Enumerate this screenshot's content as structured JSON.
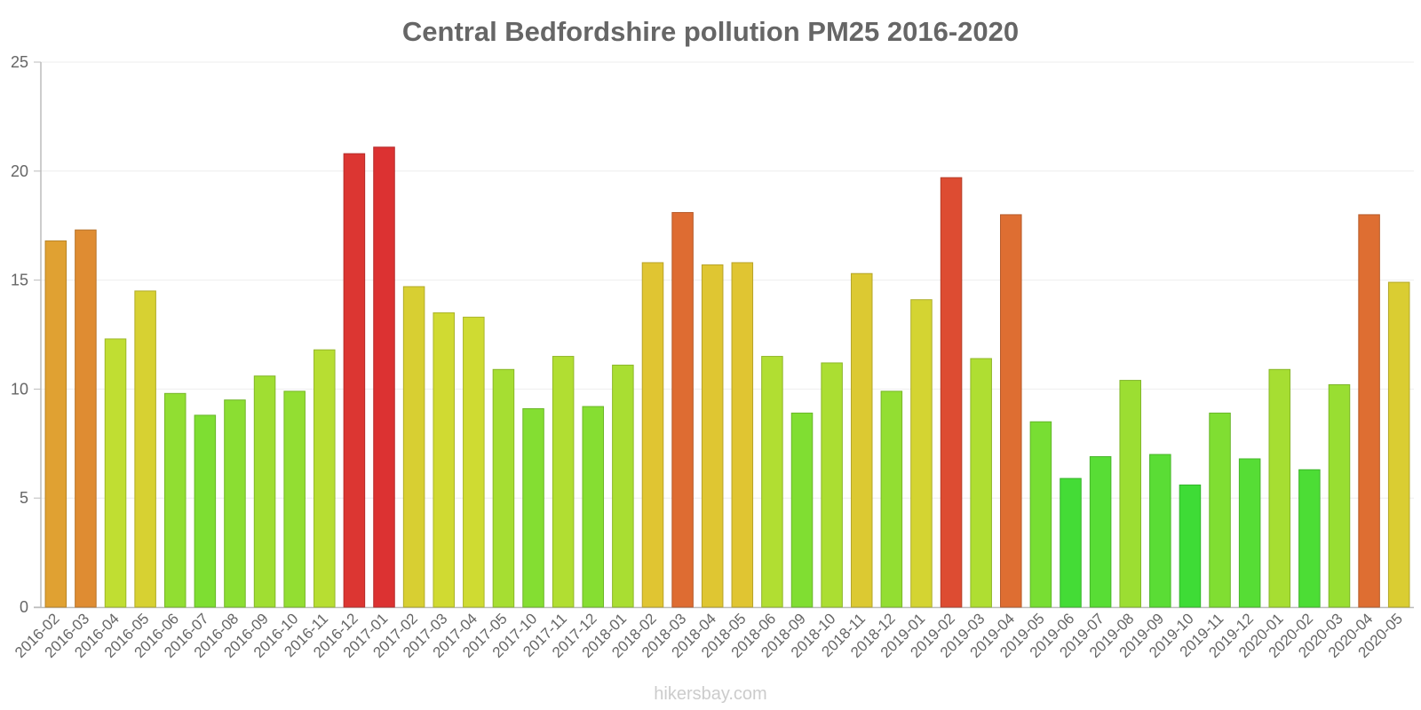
{
  "chart_data": {
    "type": "bar",
    "title": "Central Bedfordshire pollution PM25 2016-2020",
    "xlabel": "",
    "ylabel": "",
    "ylim": [
      0,
      25
    ],
    "yticks": [
      "0",
      "5",
      "10",
      "15",
      "20",
      "25"
    ],
    "grid": true,
    "categories": [
      "2016-02",
      "2016-03",
      "2016-04",
      "2016-05",
      "2016-06",
      "2016-07",
      "2016-08",
      "2016-09",
      "2016-10",
      "2016-11",
      "2016-12",
      "2017-01",
      "2017-02",
      "2017-03",
      "2017-04",
      "2017-05",
      "2017-10",
      "2017-11",
      "2017-12",
      "2018-01",
      "2018-02",
      "2018-03",
      "2018-04",
      "2018-05",
      "2018-06",
      "2018-09",
      "2018-10",
      "2018-11",
      "2018-12",
      "2019-01",
      "2019-02",
      "2019-03",
      "2019-04",
      "2019-05",
      "2019-06",
      "2019-07",
      "2019-08",
      "2019-09",
      "2019-10",
      "2019-11",
      "2019-12",
      "2020-01",
      "2020-02",
      "2020-03",
      "2020-04",
      "2020-05"
    ],
    "values": [
      16.8,
      17.3,
      12.3,
      14.5,
      9.8,
      8.8,
      9.5,
      10.6,
      9.9,
      11.8,
      20.8,
      21.1,
      14.7,
      13.5,
      13.3,
      10.9,
      9.1,
      11.5,
      9.2,
      11.1,
      15.8,
      18.1,
      15.7,
      15.8,
      11.5,
      8.9,
      11.2,
      15.3,
      9.9,
      14.1,
      19.7,
      11.4,
      18.0,
      8.5,
      5.9,
      6.9,
      10.4,
      7.0,
      5.6,
      8.9,
      6.8,
      10.9,
      6.3,
      10.2,
      18.0,
      14.9
    ]
  },
  "watermark": "hikersbay.com"
}
